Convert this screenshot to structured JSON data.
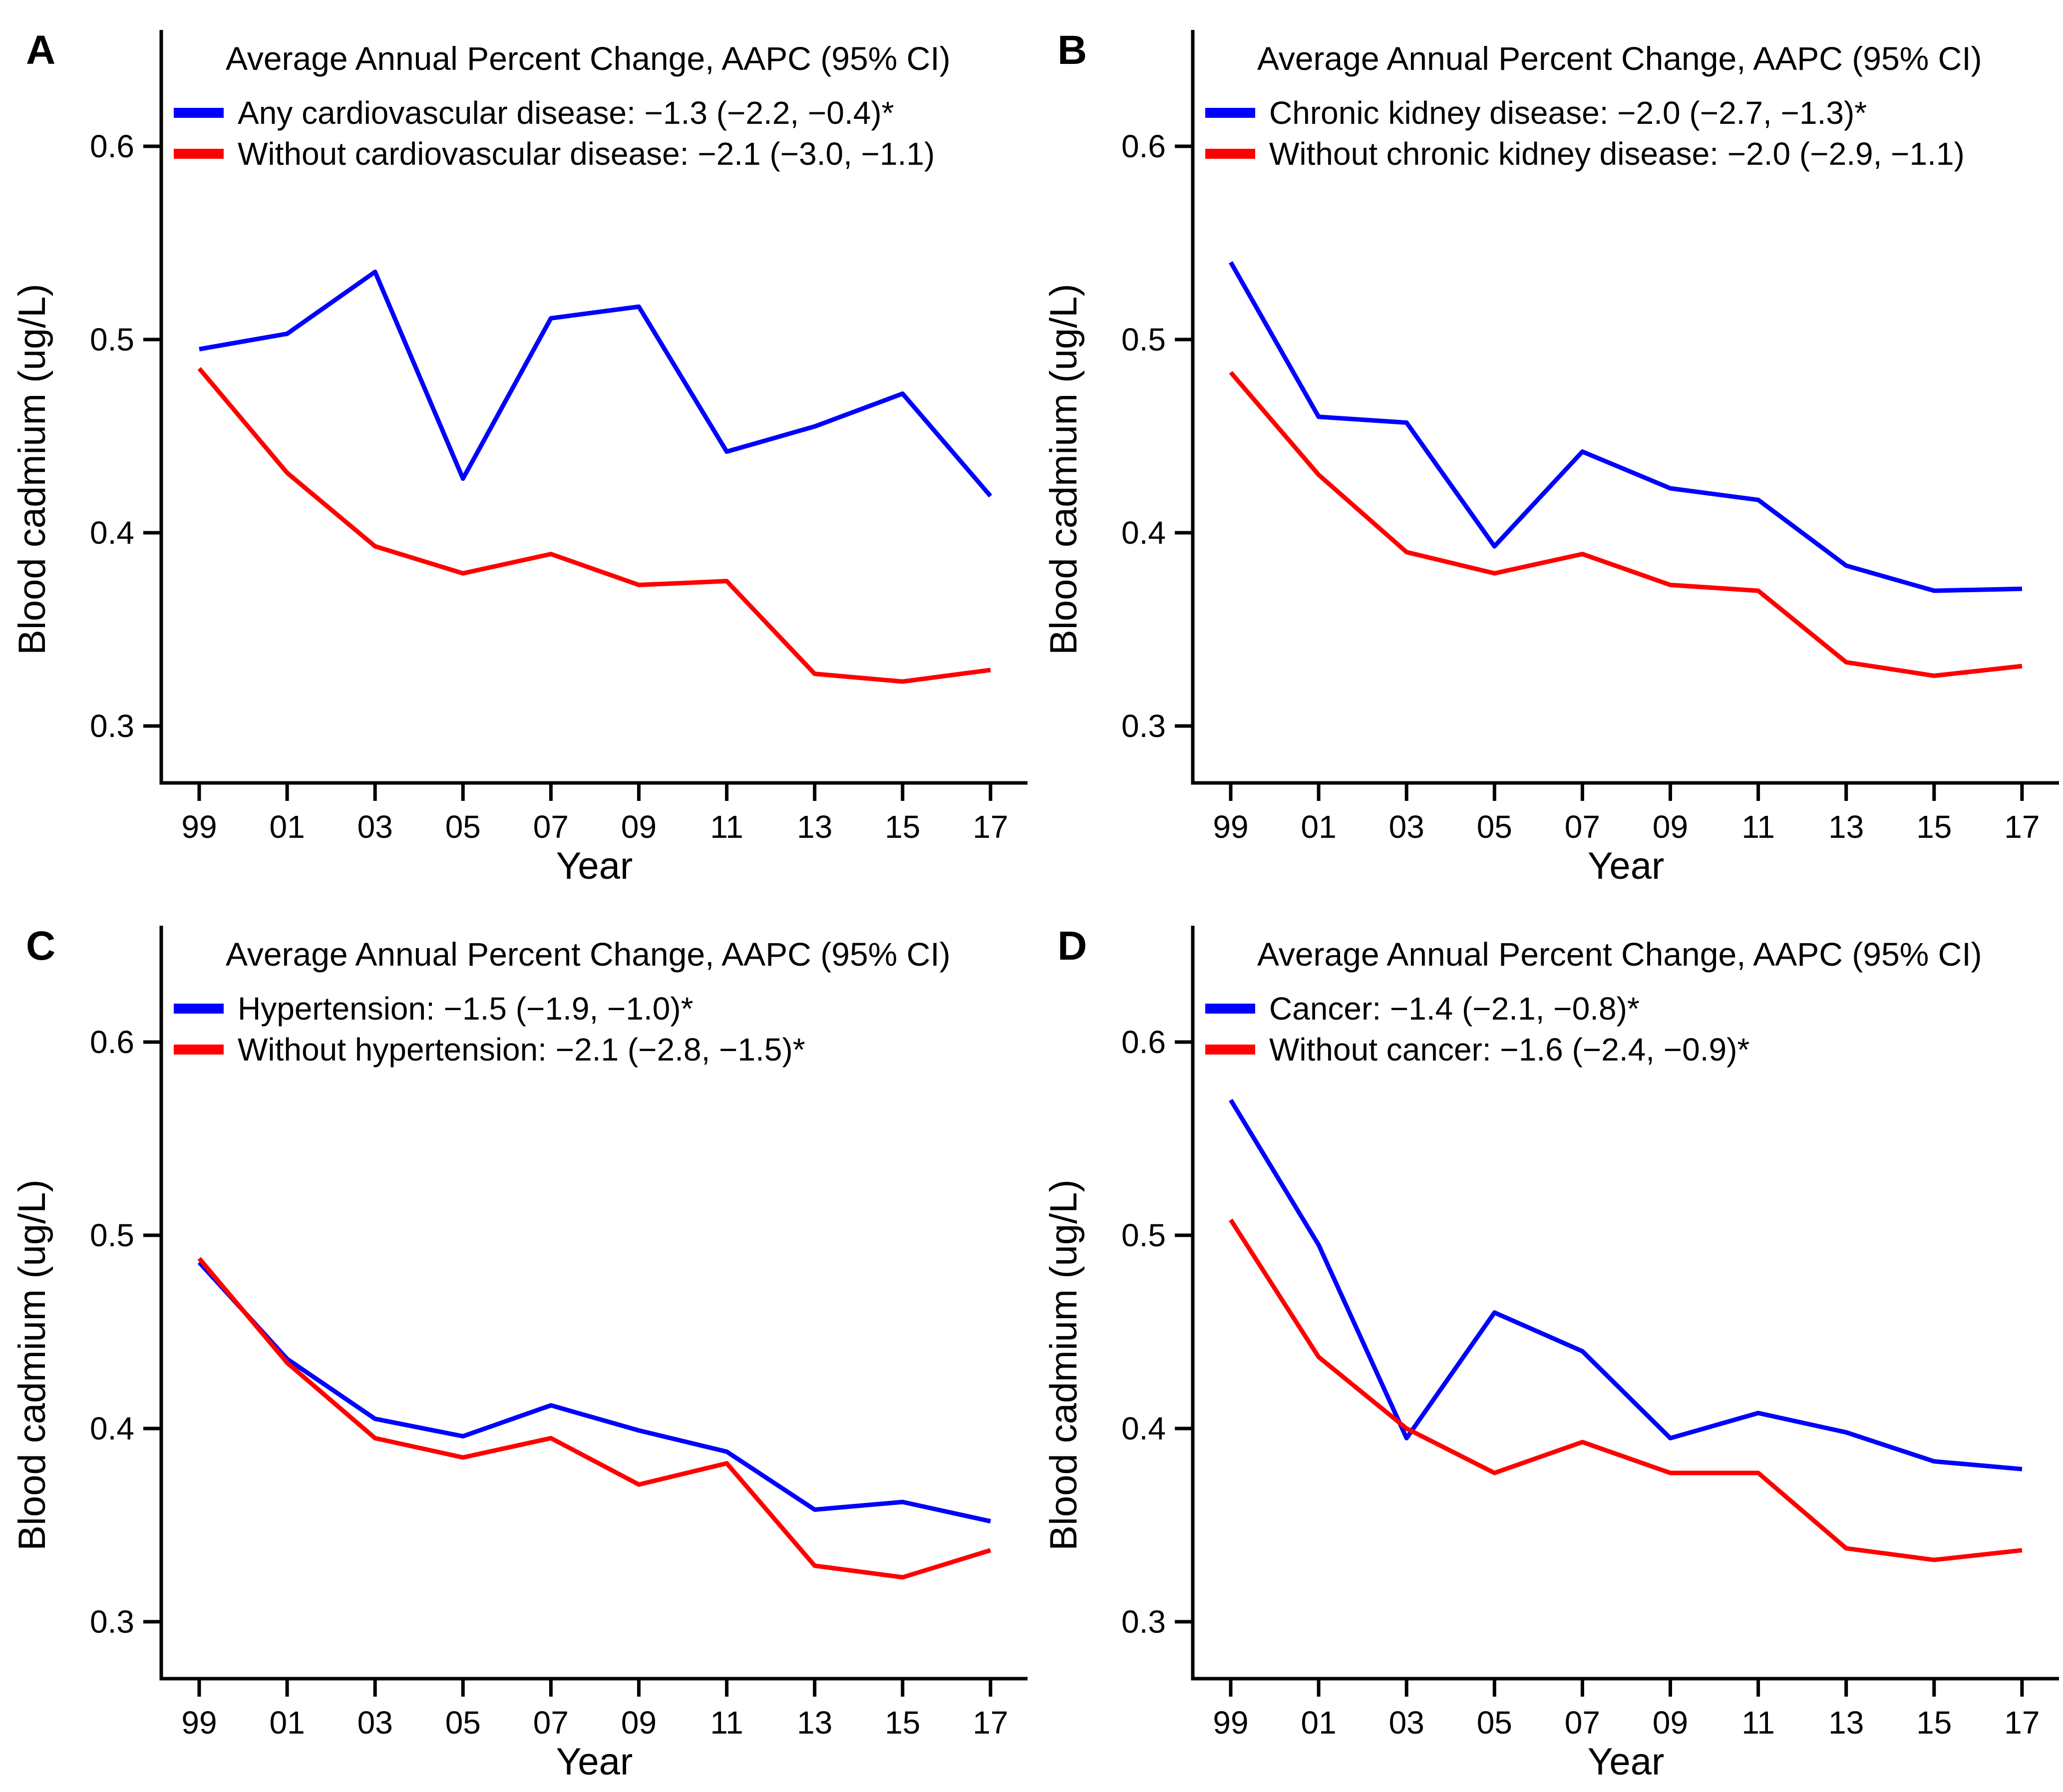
{
  "figure": {
    "background": "#ffffff",
    "series_colors": {
      "group": "#0000ff",
      "without_group": "#ff0000"
    },
    "axis_color": "#000000",
    "text_color": "#000000"
  },
  "axes": {
    "x_label": "Year",
    "y_label": "Blood cadmium (ug/L)",
    "x_ticks": [
      "99",
      "01",
      "03",
      "05",
      "07",
      "09",
      "11",
      "13",
      "15",
      "17"
    ],
    "y_ticks": [
      "0.6",
      "0.5",
      "0.4",
      "0.3"
    ],
    "ylim": [
      0.26,
      0.64
    ],
    "grid": "off",
    "legend_position": "top-inside"
  },
  "chart_data": [
    {
      "panel": "A",
      "type": "line",
      "title": "Average Annual Percent Change, AAPC (95% CI)",
      "xlabel": "Year",
      "ylabel": "Blood cadmium (ug/L)",
      "categories": [
        "99",
        "01",
        "03",
        "05",
        "07",
        "09",
        "11",
        "13",
        "15",
        "17"
      ],
      "yticks": [
        0.6,
        0.5,
        0.4,
        0.3
      ],
      "series": [
        {
          "name": "Any cardiovascular disease: −1.3 (−2.2, −0.4)*",
          "color": "#0000ff",
          "values": [
            0.495,
            0.503,
            0.535,
            0.428,
            0.511,
            0.517,
            0.442,
            0.455,
            0.472,
            0.419
          ]
        },
        {
          "name": "Without cardiovascular disease: −2.1 (−3.0, −1.1)",
          "color": "#ff0000",
          "values": [
            0.485,
            0.431,
            0.393,
            0.379,
            0.389,
            0.373,
            0.375,
            0.327,
            0.323,
            0.329
          ]
        }
      ]
    },
    {
      "panel": "B",
      "type": "line",
      "title": "Average Annual Percent Change, AAPC (95% CI)",
      "xlabel": "Year",
      "ylabel": "Blood cadmium (ug/L)",
      "categories": [
        "99",
        "01",
        "03",
        "05",
        "07",
        "09",
        "11",
        "13",
        "15",
        "17"
      ],
      "yticks": [
        0.6,
        0.5,
        0.4,
        0.3
      ],
      "series": [
        {
          "name": "Chronic kidney disease: −2.0 (−2.7, −1.3)*",
          "color": "#0000ff",
          "values": [
            0.54,
            0.46,
            0.457,
            0.393,
            0.442,
            0.423,
            0.417,
            0.383,
            0.37,
            0.371
          ]
        },
        {
          "name": "Without chronic kidney disease: −2.0 (−2.9, −1.1)",
          "color": "#ff0000",
          "values": [
            0.483,
            0.43,
            0.39,
            0.379,
            0.389,
            0.373,
            0.37,
            0.333,
            0.326,
            0.331
          ]
        }
      ]
    },
    {
      "panel": "C",
      "type": "line",
      "title": "Average Annual Percent Change, AAPC (95% CI)",
      "xlabel": "Year",
      "ylabel": "Blood cadmium (ug/L)",
      "categories": [
        "99",
        "01",
        "03",
        "05",
        "07",
        "09",
        "11",
        "13",
        "15",
        "17"
      ],
      "yticks": [
        0.6,
        0.5,
        0.4,
        0.3
      ],
      "series": [
        {
          "name": "Hypertension: −1.5 (−1.9, −1.0)*",
          "color": "#0000ff",
          "values": [
            0.486,
            0.436,
            0.405,
            0.396,
            0.412,
            0.399,
            0.388,
            0.358,
            0.362,
            0.352
          ]
        },
        {
          "name": "Without hypertension: −2.1 (−2.8, −1.5)*",
          "color": "#ff0000",
          "values": [
            0.488,
            0.434,
            0.395,
            0.385,
            0.395,
            0.371,
            0.382,
            0.329,
            0.323,
            0.337
          ]
        }
      ]
    },
    {
      "panel": "D",
      "type": "line",
      "title": "Average Annual Percent Change, AAPC (95% CI)",
      "xlabel": "Year",
      "ylabel": "Blood cadmium (ug/L)",
      "categories": [
        "99",
        "01",
        "03",
        "05",
        "07",
        "09",
        "11",
        "13",
        "15",
        "17"
      ],
      "yticks": [
        0.6,
        0.5,
        0.4,
        0.3
      ],
      "series": [
        {
          "name": "Cancer: −1.4 (−2.1, −0.8)*",
          "color": "#0000ff",
          "values": [
            0.57,
            0.495,
            0.395,
            0.46,
            0.44,
            0.395,
            0.408,
            0.398,
            0.383,
            0.379
          ]
        },
        {
          "name": "Without cancer: −1.6 (−2.4, −0.9)*",
          "color": "#ff0000",
          "values": [
            0.508,
            0.437,
            0.4,
            0.377,
            0.393,
            0.377,
            0.377,
            0.338,
            0.332,
            0.337
          ]
        }
      ]
    }
  ]
}
